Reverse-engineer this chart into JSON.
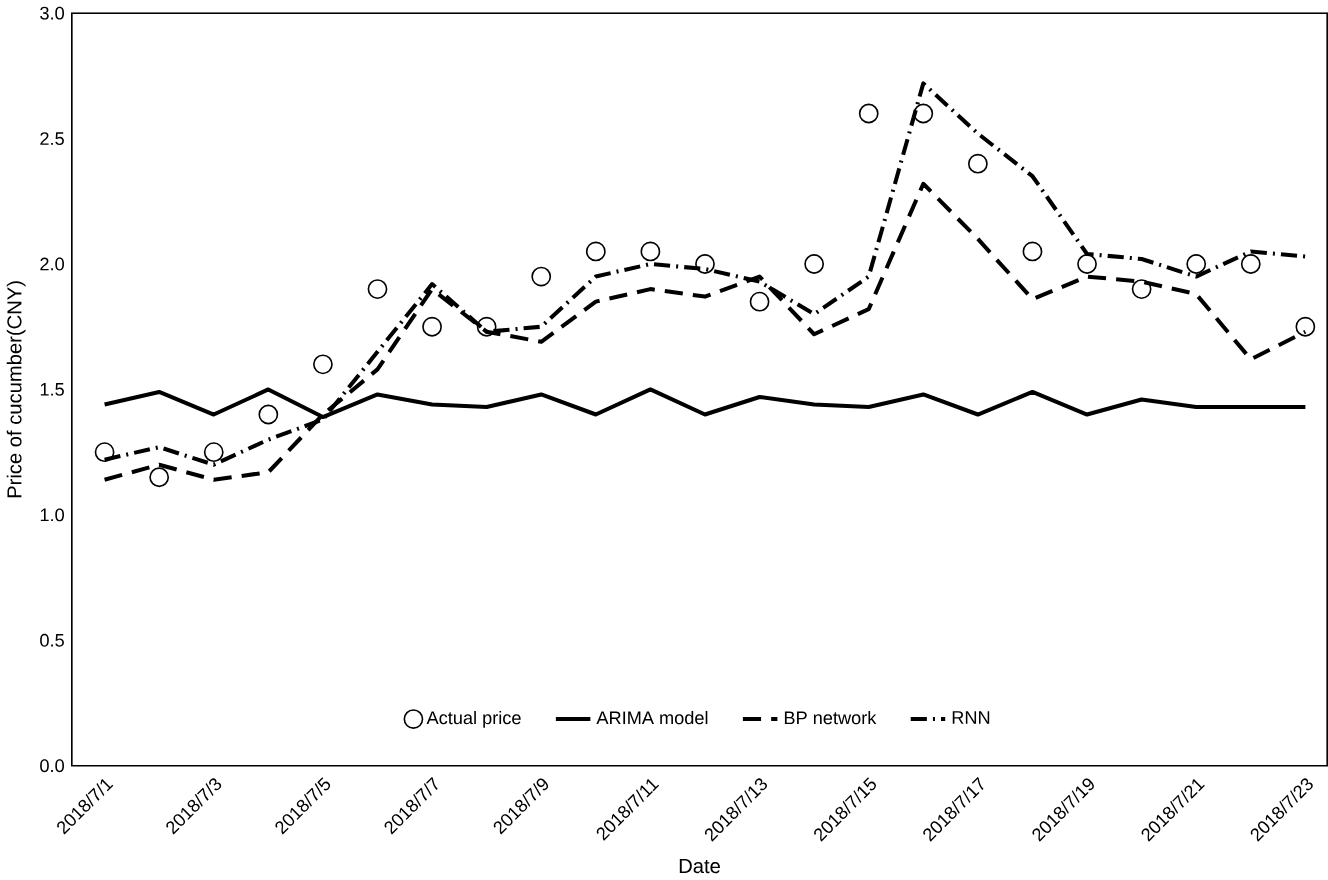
{
  "chart_data": {
    "type": "line",
    "xlabel": "Date",
    "ylabel": "Price  of cucumber(CNY)",
    "categories": [
      "2018/7/1",
      null,
      "2018/7/3",
      null,
      "2018/7/5",
      null,
      "2018/7/7",
      null,
      "2018/7/9",
      null,
      "2018/7/11",
      null,
      "2018/7/13",
      null,
      "2018/7/15",
      null,
      "2018/7/17",
      null,
      "2018/7/19",
      null,
      "2018/7/21",
      null,
      "2018/7/23"
    ],
    "ylim": [
      0,
      3
    ],
    "yticks": [
      {
        "value": 0,
        "label": "0.0"
      },
      {
        "value": 0.5,
        "label": "0.5"
      },
      {
        "value": 1,
        "label": "1.0"
      },
      {
        "value": 1.5,
        "label": "1.5"
      },
      {
        "value": 2,
        "label": "2.0"
      },
      {
        "value": 2.5,
        "label": "2.5"
      },
      {
        "value": 3,
        "label": "3.0"
      }
    ],
    "legend": "bottom",
    "grid": false,
    "series": [
      {
        "name": "Actual price",
        "type": "scatter",
        "marker": "circle",
        "color": "#000000",
        "values": [
          1.25,
          1.15,
          1.25,
          1.4,
          1.6,
          1.9,
          1.75,
          1.75,
          1.95,
          2.05,
          2.05,
          2.0,
          1.85,
          2.0,
          2.6,
          2.6,
          2.4,
          2.05,
          2.0,
          1.9,
          2.0,
          2.0,
          1.75
        ]
      },
      {
        "name": "ARIMA model",
        "line_style": "solid",
        "color": "#000000",
        "values": [
          1.44,
          1.49,
          1.4,
          1.5,
          1.39,
          1.48,
          1.44,
          1.43,
          1.48,
          1.4,
          1.5,
          1.4,
          1.47,
          1.44,
          1.43,
          1.48,
          1.4,
          1.49,
          1.4,
          1.46,
          1.43,
          1.43,
          1.43
        ]
      },
      {
        "name": "BP network",
        "line_style": "dashed",
        "color": "#000000",
        "values": [
          1.14,
          1.2,
          1.14,
          1.17,
          1.4,
          1.58,
          1.9,
          1.73,
          1.69,
          1.85,
          1.9,
          1.87,
          1.95,
          1.72,
          1.82,
          2.32,
          2.1,
          1.86,
          1.95,
          1.93,
          1.88,
          1.62,
          1.73
        ]
      },
      {
        "name": "RNN",
        "line_style": "dashdot",
        "color": "#000000",
        "values": [
          1.22,
          1.27,
          1.2,
          1.3,
          1.38,
          1.65,
          1.92,
          1.73,
          1.75,
          1.95,
          2.0,
          1.98,
          1.93,
          1.8,
          1.95,
          2.72,
          2.52,
          2.35,
          2.04,
          2.02,
          1.95,
          2.05,
          2.03
        ]
      }
    ]
  }
}
